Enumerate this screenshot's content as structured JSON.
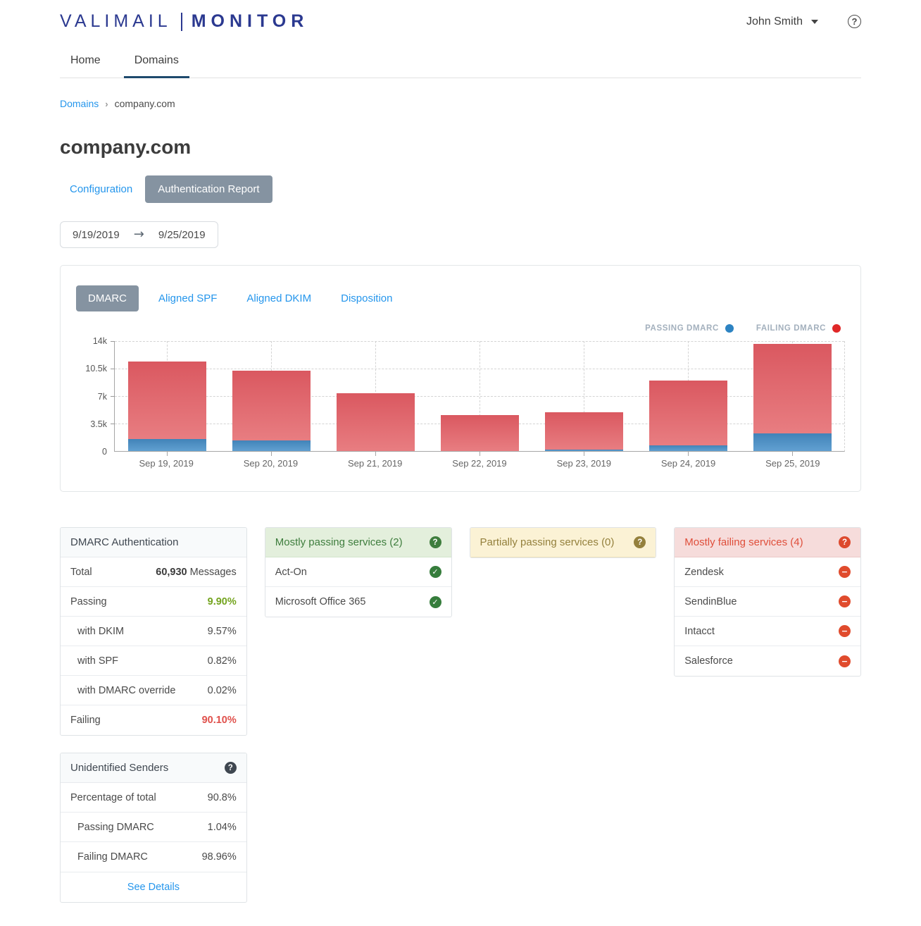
{
  "header": {
    "logo_primary": "VALIMAIL",
    "logo_secondary": "MONITOR",
    "user_name": "John Smith",
    "help_glyph": "?"
  },
  "nav": {
    "tabs": [
      {
        "label": "Home",
        "active": false
      },
      {
        "label": "Domains",
        "active": true
      }
    ]
  },
  "breadcrumb": {
    "parent": "Domains",
    "current": "company.com"
  },
  "page": {
    "title": "company.com",
    "config_label": "Configuration",
    "report_label": "Authentication Report",
    "date_start": "9/19/2019",
    "date_end": "9/25/2019",
    "date_arrow": "→"
  },
  "chart_panel": {
    "tabs": [
      {
        "label": "DMARC",
        "active": true
      },
      {
        "label": "Aligned SPF",
        "active": false
      },
      {
        "label": "Aligned DKIM",
        "active": false
      },
      {
        "label": "Disposition",
        "active": false
      }
    ],
    "legend": [
      {
        "label": "PASSING DMARC",
        "color": "#2d83c2"
      },
      {
        "label": "FAILING DMARC",
        "color": "#e02828"
      }
    ]
  },
  "chart_data": {
    "type": "bar",
    "stacked": true,
    "categories": [
      "Sep 19, 2019",
      "Sep 20, 2019",
      "Sep 21, 2019",
      "Sep 22, 2019",
      "Sep 23, 2019",
      "Sep 24, 2019",
      "Sep 25, 2019"
    ],
    "series": [
      {
        "name": "Passing DMARC",
        "color": "#4183b8",
        "values": [
          1500,
          1350,
          40,
          40,
          150,
          700,
          2250
        ]
      },
      {
        "name": "Failing DMARC",
        "color": "#da5860",
        "values": [
          9900,
          8850,
          7360,
          4510,
          4800,
          8300,
          11350
        ]
      }
    ],
    "title": "",
    "xlabel": "",
    "ylabel": "",
    "ylim": [
      0,
      14000
    ],
    "yticks": [
      {
        "label": "0",
        "value": 0
      },
      {
        "label": "3.5k",
        "value": 3500
      },
      {
        "label": "7k",
        "value": 7000
      },
      {
        "label": "10.5k",
        "value": 10500
      },
      {
        "label": "14k",
        "value": 14000
      }
    ],
    "grid": true,
    "legend_position": "top-right"
  },
  "dmarc_auth": {
    "title": "DMARC Authentication",
    "rows": [
      {
        "label": "Total",
        "value": "60,930",
        "suffix": " Messages",
        "style": "bold",
        "indent": false
      },
      {
        "label": "Passing",
        "value": "9.90%",
        "style": "green",
        "indent": false
      },
      {
        "label": "with DKIM",
        "value": "9.57%",
        "style": "plain",
        "indent": true
      },
      {
        "label": "with SPF",
        "value": "0.82%",
        "style": "plain",
        "indent": true
      },
      {
        "label": "with DMARC override",
        "value": "0.02%",
        "style": "plain",
        "indent": true
      },
      {
        "label": "Failing",
        "value": "90.10%",
        "style": "red",
        "indent": false
      }
    ]
  },
  "service_cards": [
    {
      "title": "Mostly passing services (2)",
      "tone": "green",
      "item_icon": "check",
      "items": [
        "Act-On",
        "Microsoft Office 365"
      ]
    },
    {
      "title": "Partially passing services (0)",
      "tone": "yellow",
      "item_icon": "none",
      "items": []
    },
    {
      "title": "Mostly failing services (4)",
      "tone": "red",
      "item_icon": "minus",
      "items": [
        "Zendesk",
        "SendinBlue",
        "Intacct",
        "Salesforce"
      ]
    }
  ],
  "unidentified": {
    "title": "Unidentified Senders",
    "rows": [
      {
        "label": "Percentage of total",
        "value": "90.8%",
        "style": "plain",
        "indent": false
      },
      {
        "label": "Passing DMARC",
        "value": "1.04%",
        "style": "plain",
        "indent": true
      },
      {
        "label": "Failing DMARC",
        "value": "98.96%",
        "style": "plain",
        "indent": true
      }
    ],
    "link_label": "See Details"
  },
  "colors": {
    "brand_navy": "#2b3990",
    "link_blue": "#2596ec",
    "button_gray": "#8593a1",
    "pass_green": "#74a41f",
    "fail_red": "#e0514c",
    "bar_pass_blue": "#4183b8",
    "bar_fail_red": "#da5860"
  },
  "icons": {
    "check": "✓",
    "minus": "−",
    "question": "?"
  }
}
